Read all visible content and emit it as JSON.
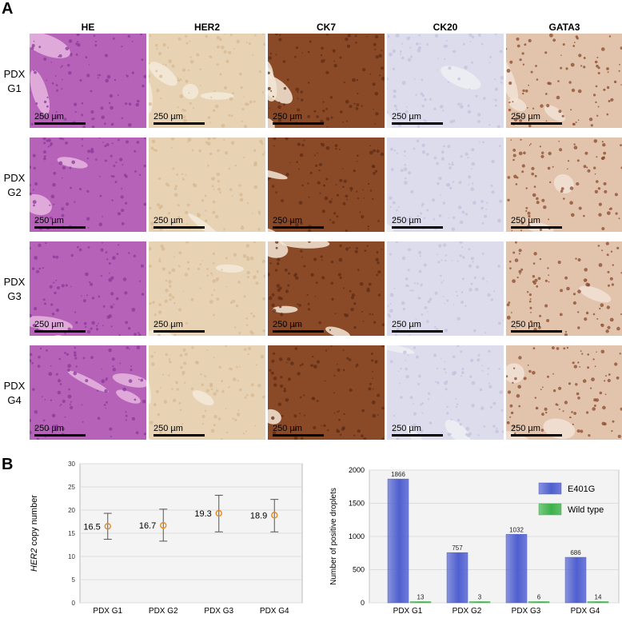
{
  "panel_a": {
    "letter": "A",
    "columns": [
      "HE",
      "HER2",
      "CK7",
      "CK20",
      "GATA3"
    ],
    "rows": [
      {
        "line1": "PDX",
        "line2": "G1"
      },
      {
        "line1": "PDX",
        "line2": "G2"
      },
      {
        "line1": "PDX",
        "line2": "G3"
      },
      {
        "line1": "PDX",
        "line2": "G4"
      }
    ],
    "scale_bar_label": "250 µm",
    "stain_colors": {
      "HE": [
        "#b562b8",
        "#8a3a9a",
        "#e6b6df"
      ],
      "HER2": [
        "#e8d2b4",
        "#d7b890",
        "#f3ead9"
      ],
      "CK7": [
        "#8a4a28",
        "#5e2c14",
        "#f2e6d6"
      ],
      "CK20": [
        "#dcdcec",
        "#c2c2dc",
        "#efeff5"
      ],
      "GATA3": [
        "#e2c4ac",
        "#8a4a2e",
        "#f1e3d6"
      ]
    }
  },
  "panel_b": {
    "letter": "B",
    "chart_data": [
      {
        "type": "scatter",
        "categories": [
          "PDX G1",
          "PDX G2",
          "PDX G3",
          "PDX G4"
        ],
        "values": [
          16.5,
          16.7,
          19.3,
          18.9
        ],
        "error_low": [
          13.7,
          13.3,
          15.3,
          15.3
        ],
        "error_high": [
          19.3,
          20.2,
          23.2,
          22.3
        ],
        "data_labels": [
          "16.5",
          "16.7",
          "19.3",
          "18.9"
        ],
        "ylabel_italic": "HER2",
        "ylabel_rest": " copy number",
        "ylim": [
          0,
          30
        ],
        "yticks": [
          "0",
          "5",
          "10",
          "15",
          "20",
          "25",
          "30"
        ],
        "grid": true,
        "marker_color": "#e8891e"
      },
      {
        "type": "bar",
        "categories": [
          "PDX G1",
          "PDX G2",
          "PDX G3",
          "PDX G4"
        ],
        "ylabel": "Number of positive droplets",
        "ylim": [
          0,
          2000
        ],
        "yticks": [
          "0",
          "500",
          "1000",
          "1500",
          "2000"
        ],
        "grid": true,
        "legend_position": "top-right",
        "series": [
          {
            "name": "E401G",
            "values": [
              1866,
              757,
              1032,
              686
            ],
            "labels": [
              "1866",
              "757",
              "1032",
              "686"
            ],
            "color": "#4f5fd0"
          },
          {
            "name": "Wild type",
            "values": [
              13,
              3,
              6,
              14
            ],
            "labels": [
              "13",
              "3",
              "6",
              "14"
            ],
            "color": "#3cb24a"
          }
        ]
      }
    ]
  }
}
